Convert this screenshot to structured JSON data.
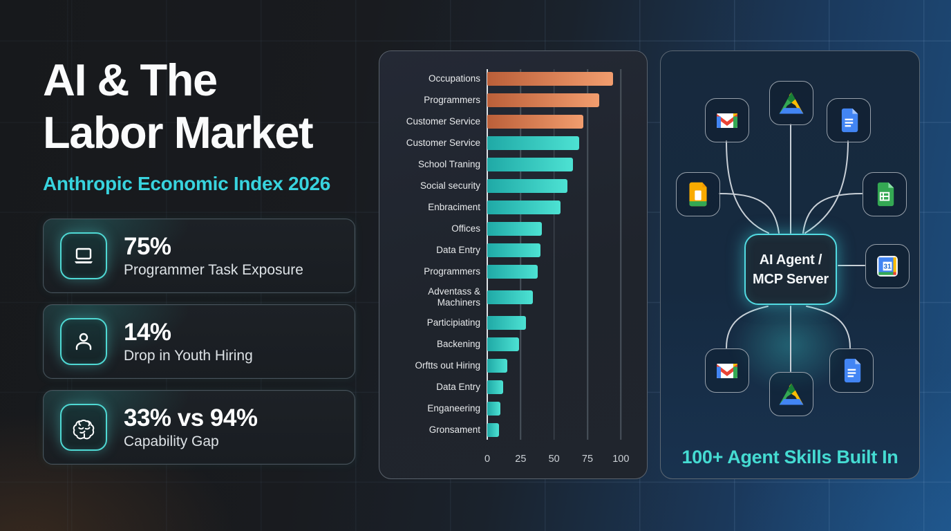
{
  "page": {
    "title_line1": "AI & The",
    "title_line2": "Labor Market",
    "subtitle": "Anthropic Economic Index 2026",
    "accent_color": "#38d3de"
  },
  "stats": [
    {
      "icon": "laptop-icon",
      "value": "75%",
      "label": "Programmer Task Exposure"
    },
    {
      "icon": "person-icon",
      "value": "14%",
      "label": "Drop in Youth Hiring"
    },
    {
      "icon": "brain-icon",
      "value": "33% vs 94%",
      "label": "Capability Gap"
    }
  ],
  "chart_data": {
    "type": "bar",
    "orientation": "horizontal",
    "title": "",
    "xlabel": "",
    "ylabel": "",
    "categories": [
      "Occupations",
      "Programmers",
      "Customer Service",
      "Customer Service",
      "School Traning",
      "Social security",
      "Enbraciment",
      "Offices",
      "Data Entry",
      "Programmers",
      "Adventass & Machiners",
      "Participiating",
      "Backening",
      "Orftts out Hiring",
      "Data Entry",
      "Enganeering",
      "Gronsament"
    ],
    "values": [
      94,
      84,
      72,
      69,
      64,
      60,
      55,
      41,
      40,
      38,
      34,
      29,
      24,
      15,
      12,
      10,
      9
    ],
    "bar_colors": [
      "orange",
      "orange",
      "orange",
      "teal",
      "teal",
      "teal",
      "teal",
      "teal",
      "teal",
      "teal",
      "teal",
      "teal",
      "teal",
      "teal",
      "teal",
      "teal",
      "teal"
    ],
    "xticks": [
      0,
      25,
      50,
      75,
      100
    ],
    "xlim": [
      0,
      105
    ],
    "grid": true,
    "legend": "none",
    "colors": {
      "orange": "#e8875a",
      "teal": "#35cfc4",
      "gridline": "#49525b",
      "axis": "#dfe4e8",
      "panel_bg": "#20252d"
    }
  },
  "agent_panel": {
    "center_label_line1": "AI Agent /",
    "center_label_line2": "MCP Server",
    "caption": "100+ Agent Skills Built In",
    "calendar_day": "31",
    "icons": [
      "gmail",
      "drive",
      "docs",
      "slides",
      "sheets",
      "calendar",
      "gmail",
      "drive",
      "docs"
    ]
  }
}
